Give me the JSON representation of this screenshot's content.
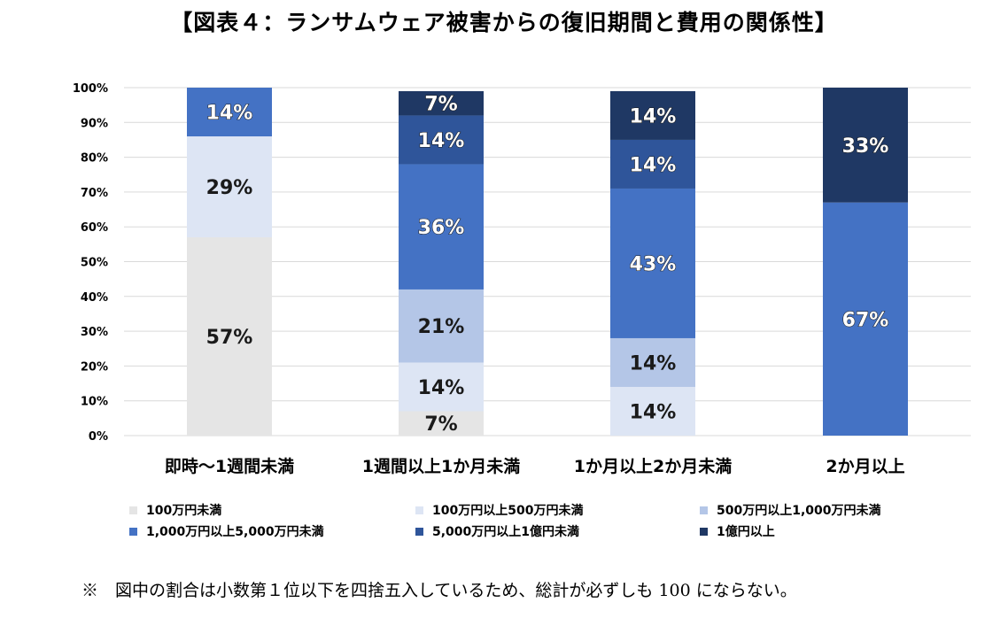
{
  "title": "【図表４：ランサムウェア被害からの復旧期間と費用の関係性】",
  "note": "※　図中の割合は小数第１位以下を四捨五入しているため、総計が必ずしも 100 にならない。",
  "colors": {
    "grid": "#d9d9d9",
    "series": [
      "#e5e5e5",
      "#dde5f4",
      "#b4c6e7",
      "#4472c4",
      "#2f559a",
      "#1f3864"
    ]
  },
  "chart_data": {
    "type": "bar",
    "stacked": true,
    "categories": [
      "即時～1週間未満",
      "1週間以上1か月未満",
      "1か月以上2か月未満",
      "2か月以上"
    ],
    "y_ticks": [
      "0%",
      "10%",
      "20%",
      "30%",
      "40%",
      "50%",
      "60%",
      "70%",
      "80%",
      "90%",
      "100%"
    ],
    "ylim": [
      0,
      100
    ],
    "grid": true,
    "legend_position": "bottom",
    "series": [
      {
        "name": "100万円未満",
        "values": [
          57,
          7,
          0,
          0
        ],
        "labels": [
          "57%",
          "7%",
          "",
          ""
        ]
      },
      {
        "name": "100万円以上500万円未満",
        "values": [
          29,
          14,
          14,
          0
        ],
        "labels": [
          "29%",
          "14%",
          "14%",
          ""
        ]
      },
      {
        "name": "500万円以上1,000万円未満",
        "values": [
          0,
          21,
          14,
          0
        ],
        "labels": [
          "",
          "21%",
          "14%",
          ""
        ]
      },
      {
        "name": "1,000万円以上5,000万円未満",
        "values": [
          14,
          36,
          43,
          67
        ],
        "labels": [
          "14%",
          "36%",
          "43%",
          "67%"
        ]
      },
      {
        "name": "5,000万円以上1億円未満",
        "values": [
          0,
          14,
          14,
          0
        ],
        "labels": [
          "",
          "14%",
          "14%",
          ""
        ]
      },
      {
        "name": "1億円以上",
        "values": [
          0,
          7,
          14,
          33
        ],
        "labels": [
          "",
          "7%",
          "14%",
          "33%"
        ]
      }
    ]
  }
}
